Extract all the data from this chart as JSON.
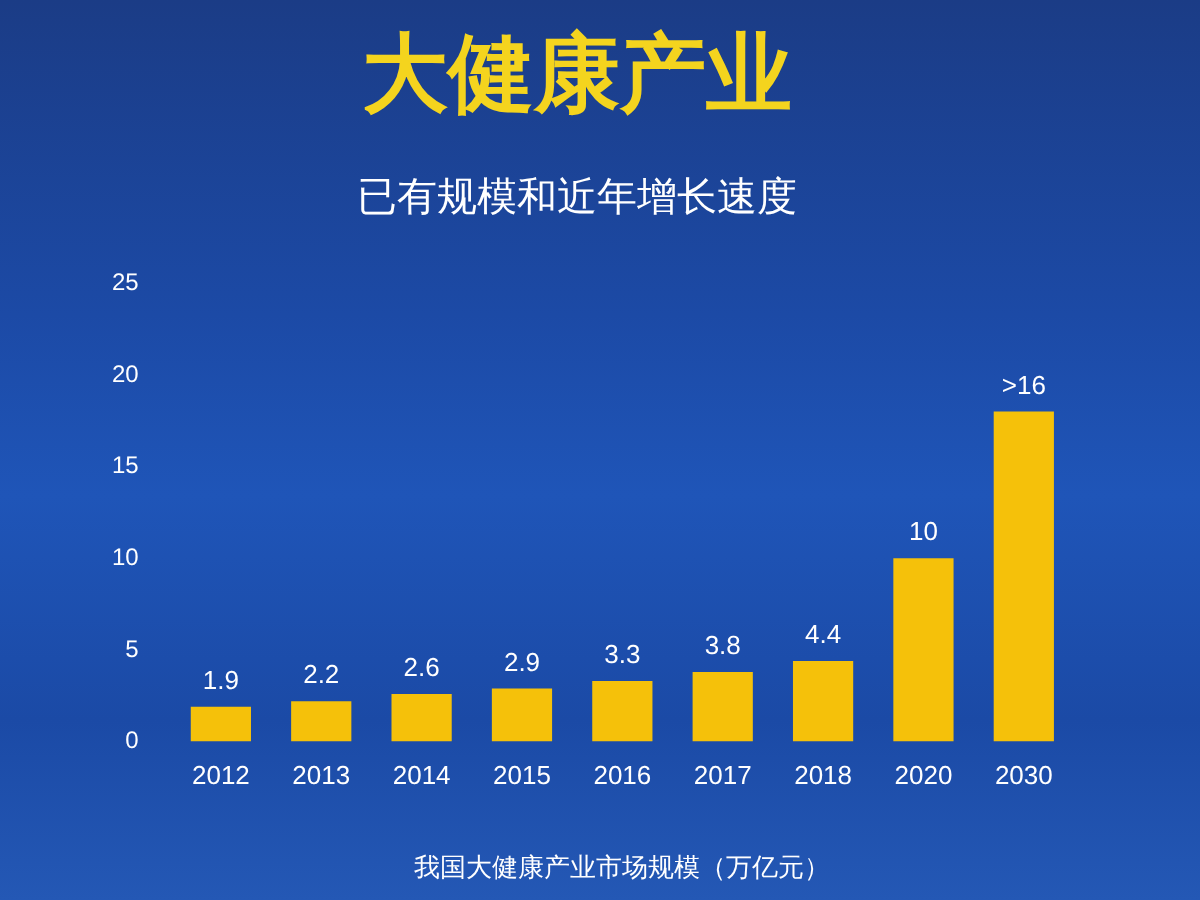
{
  "chart_data": {
    "type": "bar",
    "title": "大健康产业",
    "subtitle": "已有规模和近年增长速度",
    "xlabel": "我国大健康产业市场规模（万亿元）",
    "categories": [
      "2012",
      "2013",
      "2014",
      "2015",
      "2016",
      "2017",
      "2018",
      "2020",
      "2030"
    ],
    "values": [
      1.9,
      2.2,
      2.6,
      2.9,
      3.3,
      3.8,
      4.4,
      10,
      18
    ],
    "value_labels": [
      "1.9",
      "2.2",
      "2.6",
      "2.9",
      "3.3",
      "3.8",
      "4.4",
      "10",
      ">16"
    ],
    "color": "#f5c10a",
    "ylim": [
      0,
      25
    ],
    "yticks": [
      0,
      5,
      10,
      15,
      20,
      25
    ]
  }
}
